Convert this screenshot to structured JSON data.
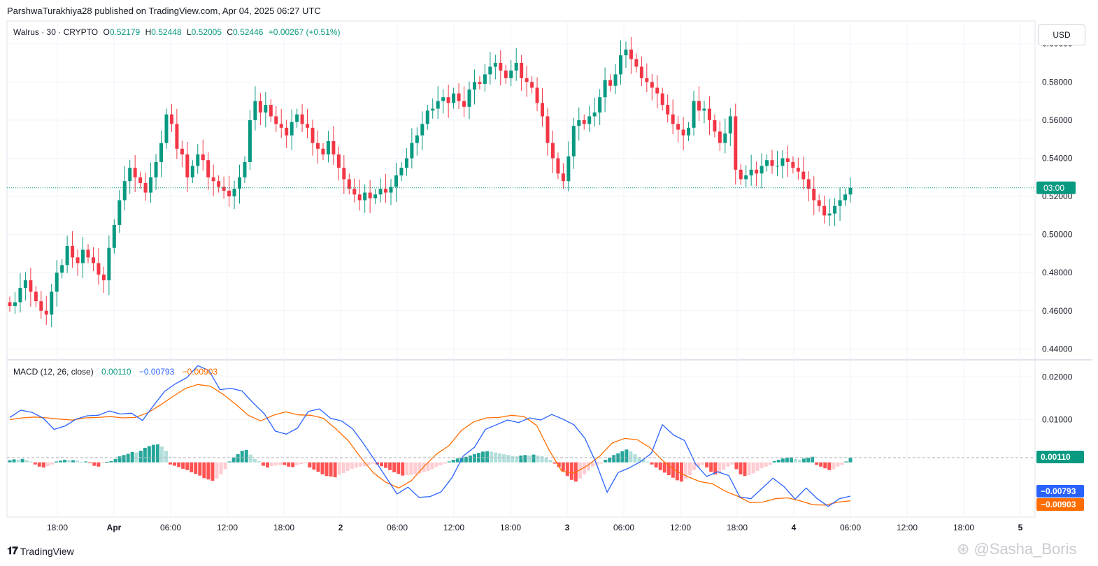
{
  "publisher_line": "ParshwaTurakhiya28 published on TradingView.com, Apr 04, 2025 06:27 UTC",
  "legend": {
    "symbol": "Walrus · 30 · CRYPTO",
    "o_label": "O",
    "o_value": "0.52179",
    "h_label": "H",
    "h_value": "0.52448",
    "l_label": "L",
    "l_value": "0.52005",
    "c_label": "C",
    "c_value": "0.52446",
    "change": "+0.00267 (+0.51%)"
  },
  "macd_legend": {
    "title": "MACD (12, 26, close)",
    "hist_value": "0.00110",
    "macd_value": "−0.00793",
    "signal_value": "−0.00903"
  },
  "currency_button": "USD",
  "footer": {
    "brand": "TradingView",
    "watermark": "@Sasha_Boris"
  },
  "colors": {
    "up": "#089981",
    "down": "#f23645",
    "macd": "#2962ff",
    "signal": "#ff6d00",
    "hist_up_strong": "#26a69a",
    "hist_up_weak": "#b2dfdb",
    "hist_down_strong": "#ff5252",
    "hist_down_weak": "#ffcdd2"
  },
  "chart_data": [
    {
      "type": "candlestick",
      "title": "Walrus · 30 · CRYPTO",
      "ylim": [
        0.435,
        0.612
      ],
      "y_ticks": [
        "0.60000",
        "0.58000",
        "0.56000",
        "0.54000",
        "0.52000",
        "0.50000",
        "0.48000",
        "0.46000",
        "0.44000"
      ],
      "x_ticks": [
        "18:00",
        "Apr",
        "06:00",
        "12:00",
        "18:00",
        "2",
        "06:00",
        "12:00",
        "18:00",
        "3",
        "06:00",
        "12:00",
        "18:00",
        "4",
        "06:00",
        "12:00",
        "18:00",
        "5"
      ],
      "current_price_label": "03:00",
      "current_price": 0.5245,
      "close": [
        0.4625,
        0.4645,
        0.472,
        0.476,
        0.47,
        0.465,
        0.46,
        0.458,
        0.47,
        0.48,
        0.484,
        0.494,
        0.488,
        0.485,
        0.492,
        0.488,
        0.485,
        0.479,
        0.476,
        0.493,
        0.505,
        0.518,
        0.528,
        0.535,
        0.53,
        0.527,
        0.522,
        0.53,
        0.538,
        0.548,
        0.563,
        0.558,
        0.545,
        0.542,
        0.53,
        0.536,
        0.542,
        0.539,
        0.53,
        0.528,
        0.525,
        0.523,
        0.52,
        0.524,
        0.53,
        0.538,
        0.56,
        0.57,
        0.564,
        0.568,
        0.562,
        0.558,
        0.556,
        0.552,
        0.559,
        0.563,
        0.558,
        0.556,
        0.548,
        0.545,
        0.542,
        0.549,
        0.542,
        0.535,
        0.529,
        0.524,
        0.521,
        0.518,
        0.522,
        0.519,
        0.521,
        0.524,
        0.522,
        0.525,
        0.531,
        0.535,
        0.54,
        0.548,
        0.552,
        0.558,
        0.565,
        0.566,
        0.57,
        0.572,
        0.569,
        0.574,
        0.57,
        0.567,
        0.576,
        0.58,
        0.579,
        0.584,
        0.588,
        0.59,
        0.586,
        0.582,
        0.586,
        0.59,
        0.582,
        0.58,
        0.577,
        0.569,
        0.562,
        0.548,
        0.54,
        0.532,
        0.528,
        0.541,
        0.557,
        0.56,
        0.558,
        0.562,
        0.564,
        0.572,
        0.581,
        0.578,
        0.584,
        0.594,
        0.597,
        0.592,
        0.588,
        0.582,
        0.58,
        0.577,
        0.574,
        0.568,
        0.563,
        0.558,
        0.555,
        0.552,
        0.556,
        0.57,
        0.565,
        0.566,
        0.56,
        0.554,
        0.548,
        0.553,
        0.562,
        0.534,
        0.529,
        0.531,
        0.534,
        0.532,
        0.536,
        0.539,
        0.536,
        0.536,
        0.54,
        0.538,
        0.535,
        0.533,
        0.529,
        0.524,
        0.518,
        0.515,
        0.51,
        0.511,
        0.515,
        0.518,
        0.521,
        0.5245
      ]
    },
    {
      "type": "line",
      "title": "MACD (12, 26, close)",
      "ylim": [
        -0.0128,
        0.0238
      ],
      "y_ticks": [
        "0.02000",
        "0.01000"
      ],
      "series": [
        {
          "name": "MACD",
          "values": [
            0.0105,
            0.0122,
            0.0117,
            0.0104,
            0.0077,
            0.0085,
            0.0101,
            0.0109,
            0.011,
            0.012,
            0.0113,
            0.0115,
            0.0098,
            0.0133,
            0.0166,
            0.0184,
            0.0198,
            0.0226,
            0.0215,
            0.017,
            0.0173,
            0.0167,
            0.0139,
            0.0114,
            0.0073,
            0.0066,
            0.008,
            0.0119,
            0.0125,
            0.0103,
            0.0097,
            0.0078,
            0.0043,
            0.0005,
            -0.0034,
            -0.0074,
            -0.0058,
            -0.0082,
            -0.008,
            -0.0069,
            -0.0035,
            0.0015,
            0.0035,
            0.0077,
            0.0088,
            0.0099,
            0.0093,
            0.0104,
            0.0099,
            0.0112,
            0.0101,
            0.0088,
            0.0056,
            -0.0001,
            -0.007,
            -0.0024,
            -0.0013,
            0.0001,
            0.0021,
            0.0088,
            0.0064,
            0.0051,
            -0.0004,
            -0.0033,
            -0.0022,
            -0.0031,
            -0.0081,
            -0.0085,
            -0.0061,
            -0.0037,
            -0.0057,
            -0.0086,
            -0.006,
            -0.0085,
            -0.0103,
            -0.0085,
            -0.0079
          ]
        },
        {
          "name": "Signal",
          "values": [
            0.01,
            0.0104,
            0.0106,
            0.0104,
            0.0101,
            0.0099,
            0.0104,
            0.0105,
            0.0107,
            0.0104,
            0.0105,
            0.0116,
            0.0134,
            0.0154,
            0.0173,
            0.0182,
            0.0178,
            0.0159,
            0.0136,
            0.011,
            0.0097,
            0.011,
            0.0118,
            0.0111,
            0.011,
            0.0103,
            0.0078,
            0.005,
            0.001,
            -0.0025,
            -0.0047,
            -0.006,
            -0.0043,
            -0.001,
            0.0019,
            0.0039,
            0.0075,
            0.0095,
            0.0104,
            0.0105,
            0.011,
            0.0107,
            0.0086,
            0.0028,
            -0.0021,
            -0.0025,
            -0.0008,
            0.0014,
            0.0045,
            0.0056,
            0.0053,
            0.0035,
            0.0005,
            -0.0018,
            -0.0033,
            -0.0045,
            -0.005,
            -0.0067,
            -0.0079,
            -0.0094,
            -0.0093,
            -0.0085,
            -0.0083,
            -0.009,
            -0.0099,
            -0.01,
            -0.0093,
            -0.009
          ]
        },
        {
          "name": "Histogram",
          "type": "bar",
          "values": [
            0.0005,
            0.0007,
            0.0006,
            0.0008,
            0.0005,
            0.0002,
            -0.0005,
            -0.001,
            -0.0012,
            -0.0009,
            -0.0005,
            0.0002,
            0.0004,
            0.0006,
            0.0005,
            0.0005,
            0.0004,
            0.0001,
            0.0002,
            -0.0002,
            -0.0008,
            -0.001,
            -0.0002,
            0.0001,
            0.0003,
            0.0008,
            0.0014,
            0.0017,
            0.002,
            0.0024,
            0.0023,
            0.0027,
            0.0034,
            0.0038,
            0.0041,
            0.0042,
            0.0037,
            0.0027,
            -0.0005,
            -0.0008,
            -0.0011,
            -0.0015,
            -0.0018,
            -0.0023,
            -0.0027,
            -0.0031,
            -0.0037,
            -0.004,
            -0.0043,
            -0.0038,
            -0.0028,
            -0.0016,
            0.0002,
            0.0012,
            0.0019,
            0.0027,
            0.0029,
            0.0018,
            0.0008,
            0.0003,
            -0.0008,
            -0.0012,
            -0.0009,
            -0.0007,
            -0.0006,
            -0.0006,
            -0.001,
            -0.0011,
            -0.0007,
            -0.0004,
            -0.0002,
            -0.0012,
            -0.0017,
            -0.0022,
            -0.0028,
            -0.0032,
            -0.0033,
            -0.0035,
            -0.0029,
            -0.0025,
            -0.002,
            -0.0015,
            -0.0012,
            -0.001,
            -0.0009,
            -0.0006,
            -0.0003,
            -0.0005,
            -0.0009,
            -0.0013,
            -0.0018,
            -0.0023,
            -0.0027,
            -0.0031,
            -0.003,
            -0.0029,
            -0.0028,
            -0.0026,
            -0.0023,
            -0.002,
            -0.0016,
            -0.0011,
            -0.0007,
            -0.0003,
            0.0002,
            0.0006,
            0.0009,
            0.0011,
            0.0013,
            0.0016,
            0.0019,
            0.0022,
            0.0025,
            0.0026,
            0.0025,
            0.0023,
            0.0021,
            0.0019,
            0.0017,
            0.0015,
            0.0014,
            0.0016,
            0.0017,
            0.0016,
            0.0018,
            0.0016,
            0.0014,
            0.0011,
            0.0006,
            -0.0003,
            -0.0011,
            -0.002,
            -0.0032,
            -0.0041,
            -0.0045,
            -0.0038,
            -0.0028,
            -0.0019,
            -0.001,
            -0.0006,
            -0.0003,
            0.0006,
            0.0011,
            0.0017,
            0.0021,
            0.0026,
            0.003,
            0.0026,
            0.0019,
            0.0012,
            0.0007,
            0.0002,
            -0.0005,
            -0.0012,
            -0.0018,
            -0.0024,
            -0.003,
            -0.0036,
            -0.0042,
            -0.0045,
            -0.0039,
            -0.003,
            -0.0018,
            -0.001,
            -0.0006,
            -0.0012,
            -0.0022,
            -0.0028,
            -0.0026,
            -0.0017,
            -0.001,
            -0.0005,
            -0.0016,
            -0.0028,
            -0.0032,
            -0.003,
            -0.0026,
            -0.002,
            -0.0014,
            -0.001,
            -0.0006,
            0.0003,
            0.0006,
            0.0009,
            0.0011,
            0.0012,
            0.0008,
            0.0006,
            0.0009,
            0.0011,
            0.0013,
            -0.0006,
            -0.001,
            -0.0014,
            -0.0018,
            -0.0016,
            -0.001,
            -0.0006,
            0.0002,
            0.0011
          ]
        }
      ],
      "zero_label": "0.00110",
      "macd_label": "−0.00793",
      "signal_label": "−0.00903"
    }
  ]
}
